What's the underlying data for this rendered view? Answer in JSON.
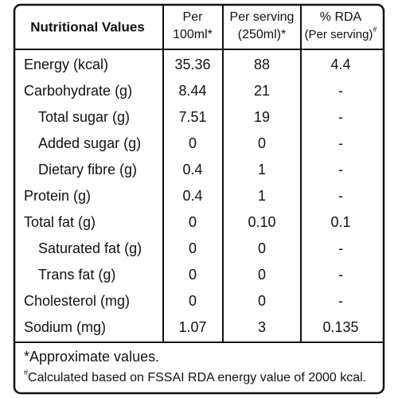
{
  "header": {
    "nutrient": "Nutritional Values",
    "per_100ml": [
      "Per",
      "100ml*"
    ],
    "per_serving": [
      "Per serving",
      "(250ml)*"
    ],
    "rda": [
      "% RDA",
      "(Per serving)",
      "#"
    ]
  },
  "rows": [
    [
      "Energy (kcal)",
      "35.36",
      "88",
      "4.4"
    ],
    [
      "Carbohydrate (g)",
      "8.44",
      "21",
      "-"
    ],
    [
      "Total sugar (g)",
      "7.51",
      "19",
      "-"
    ],
    [
      "Added sugar (g)",
      "0",
      "0",
      "-"
    ],
    [
      "Dietary fibre (g)",
      "0.4",
      "1",
      "-"
    ],
    [
      "Protein (g)",
      "0.4",
      "1",
      "-"
    ],
    [
      "Total fat (g)",
      "0",
      "0.10",
      "0.1"
    ],
    [
      "Saturated fat (g)",
      "0",
      "0",
      "-"
    ],
    [
      "Trans fat (g)",
      "0",
      "0",
      "-"
    ],
    [
      "Cholesterol (mg)",
      "0",
      "0",
      "-"
    ],
    [
      "Sodium (mg)",
      "1.07",
      "3",
      "0.135"
    ]
  ],
  "footer": {
    "note1": "*Approximate values.",
    "note2_mark": "#",
    "note2": "Calculated based on FSSAI RDA energy value of 2000 kcal."
  }
}
